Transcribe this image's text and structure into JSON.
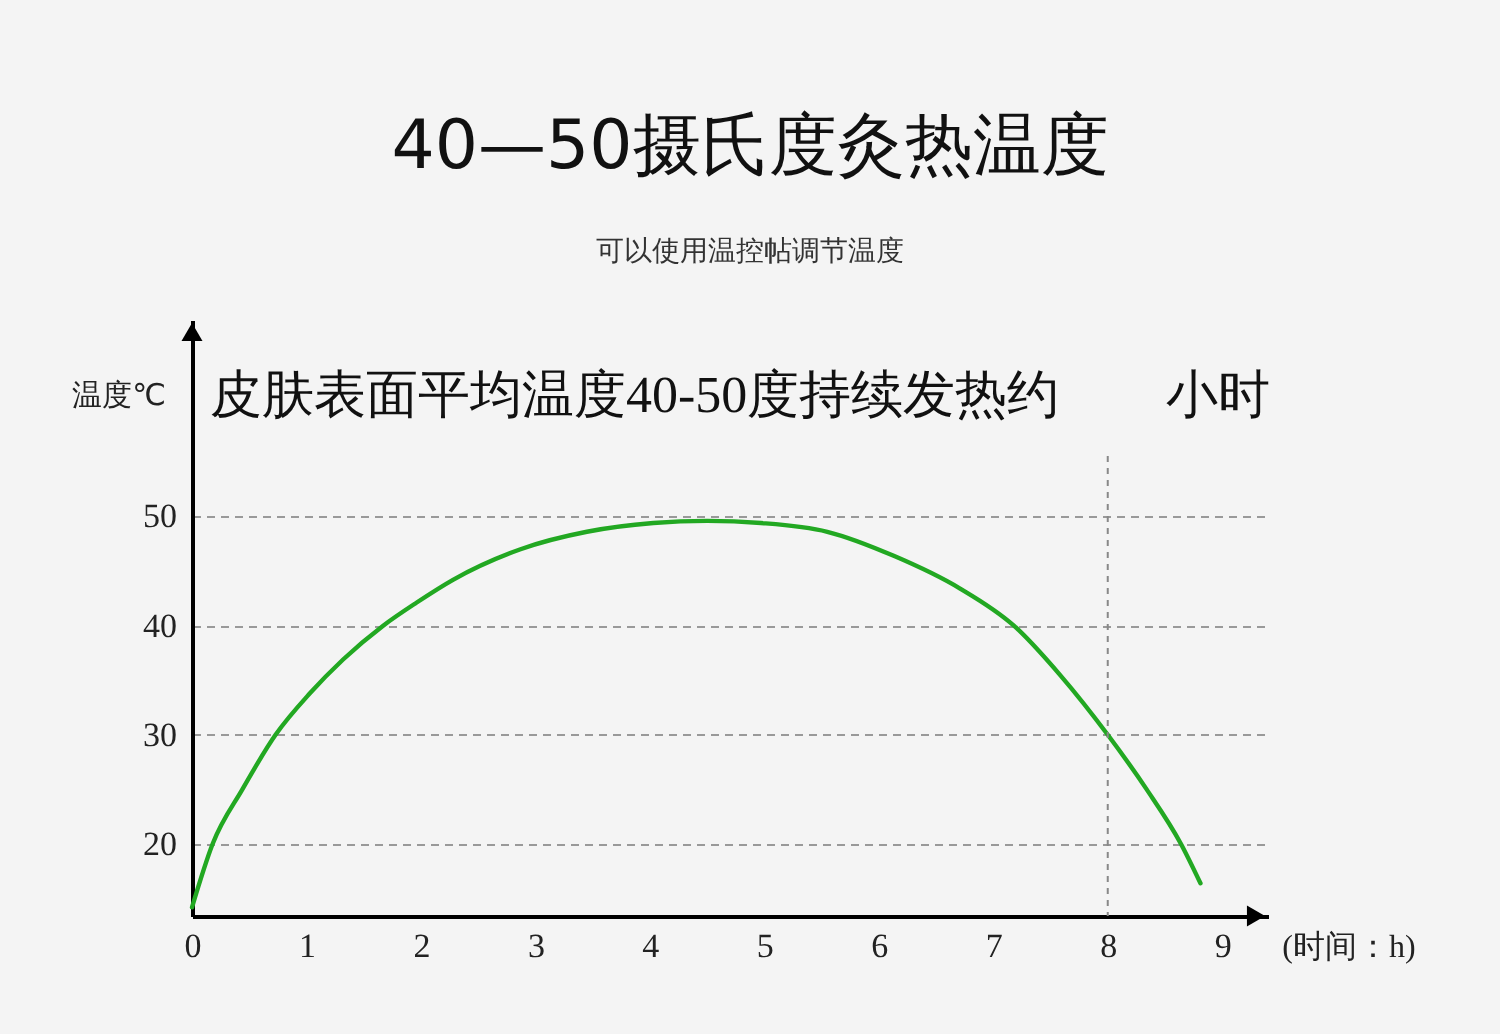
{
  "chart_data": {
    "type": "line",
    "title": "40—50摄氏度灸热温度",
    "subtitle": "可以使用温控帖调节温度",
    "xlabel": "(时间：h)",
    "ylabel": "温度℃",
    "annotations": [
      "皮肤表面平均温度40-50度持续发热约",
      "小时"
    ],
    "x": [
      0,
      0.18,
      0.44,
      0.73,
      1.03,
      1.32,
      1.67,
      1.96,
      2.28,
      2.87,
      3.45,
      4.03,
      4.5,
      4.97,
      5.55,
      6.13,
      6.71,
      7.18,
      7.59,
      8.0,
      8.34,
      8.64,
      8.81
    ],
    "series": [
      {
        "color": "#22a822",
        "values": [
          14.2,
          20,
          25,
          30,
          33.8,
          36.9,
          40,
          42.1,
          44.2,
          47,
          48.6,
          49.4,
          49.6,
          49.4,
          48.6,
          46.4,
          43.4,
          40,
          35.4,
          30,
          25,
          20,
          16.4
        ]
      }
    ],
    "xlim": [
      0,
      9.4
    ],
    "ylim": [
      13.4,
      68
    ],
    "xticks": [
      0,
      1,
      2,
      3,
      4,
      5,
      6,
      7,
      8,
      9
    ],
    "yticks": [
      20,
      30,
      40,
      50
    ],
    "grid": "y",
    "marker": "none",
    "line_style": "solid",
    "ref_lines": [
      {
        "axis": "x",
        "value": 8,
        "color": "#888888",
        "line_style": "dashed"
      }
    ]
  }
}
